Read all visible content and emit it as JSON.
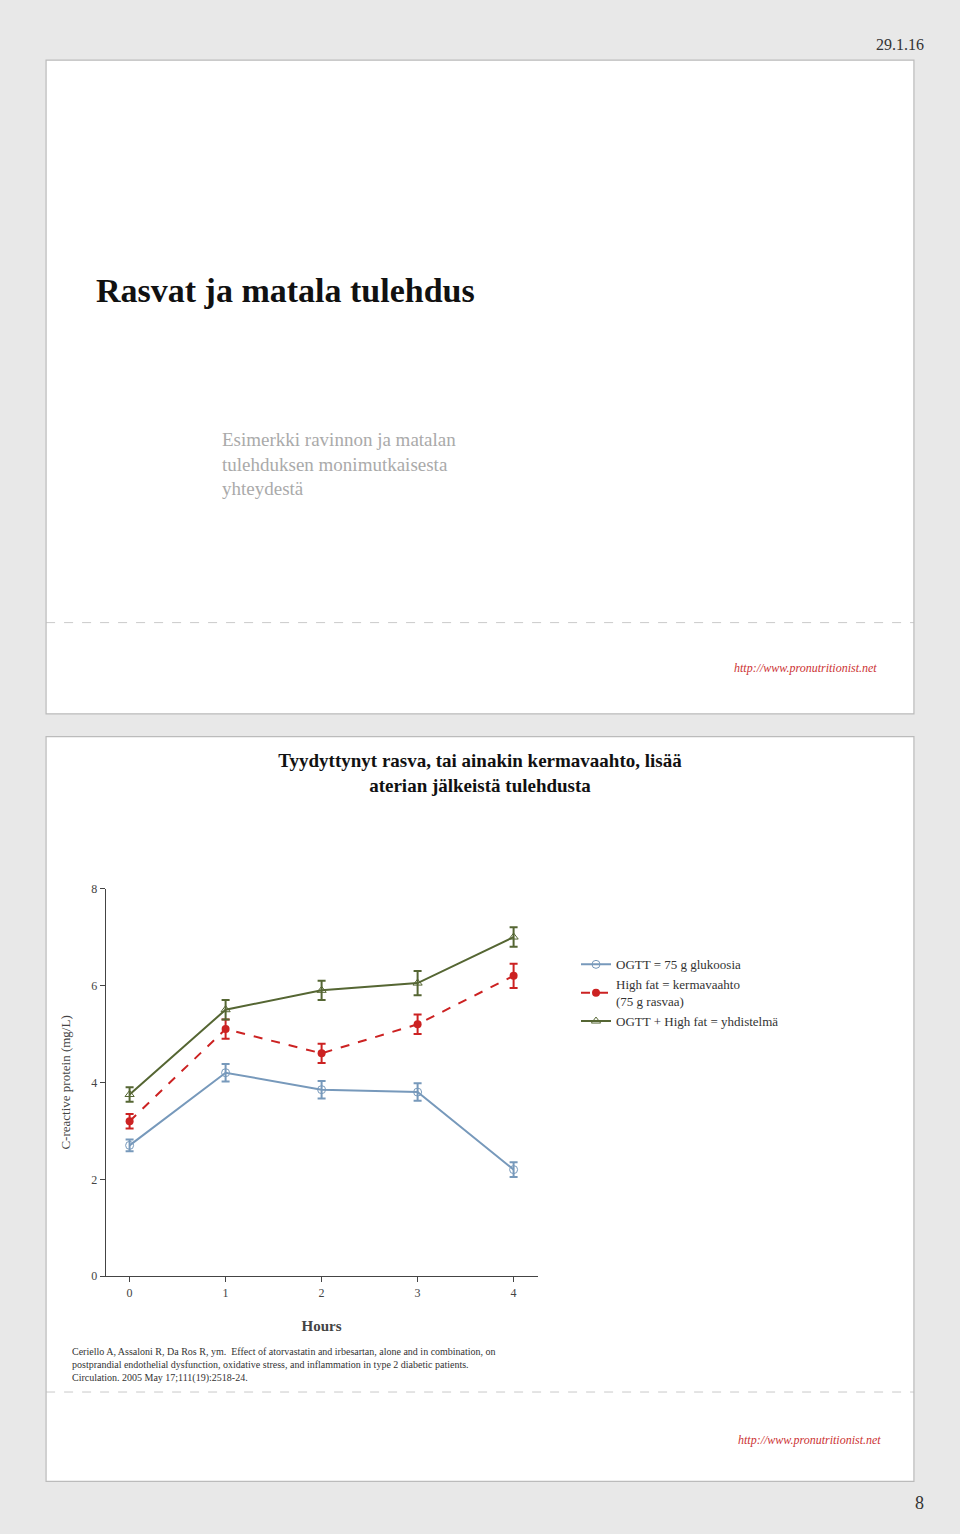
{
  "chart_data": {
    "type": "line",
    "title": "Tyydyttynyt rasva, tai ainakin kermavaahto, lisää\naterian jälkeistä tulehdusta",
    "annotations": [
      "29.1.16",
      "Rasvat ja matala tulehdus",
      "Esimerkki ravinnon ja matalan\ntulehduksen monimutkaisesta\nyhteydestä",
      "http://www.pronutritionist.net",
      "Ceriello A, Assaloni R, Da Ros R, ym.  Effect of atorvastatin and irbesartan, alone and in combination, on\npostprandial endothelial dysfunction, oxidative stress, and inflammation in type 2 diabetic patients.\nCirculation. 2005 May 17;111(19):2518-24.",
      "http://www.pronutritionist.net",
      "8"
    ],
    "x": [
      0,
      1,
      2,
      3,
      4
    ],
    "xlabel": "Hours",
    "ylabel": "C-reactive protein (mg/L)",
    "series": [
      {
        "name": "OGTT = 75 g glukoosia",
        "color": "#7799bb",
        "values": [
          2.7,
          4.2,
          3.85,
          3.8,
          2.2
        ],
        "errors": [
          0.12,
          0.18,
          0.18,
          0.18,
          0.15
        ],
        "marker": "circle-open",
        "line_style": "solid"
      },
      {
        "name": "High fat = kermavaahto\n(75 g rasvaa)",
        "color": "#cc2222",
        "values": [
          3.2,
          5.1,
          4.6,
          5.2,
          6.2
        ],
        "errors": [
          0.15,
          0.2,
          0.2,
          0.2,
          0.25
        ],
        "marker": "circle",
        "line_style": "dashed"
      },
      {
        "name": "OGTT + High fat = yhdistelmä",
        "color": "#556633",
        "values": [
          3.75,
          5.5,
          5.9,
          6.05,
          7.0
        ],
        "errors": [
          0.15,
          0.2,
          0.2,
          0.25,
          0.2
        ],
        "marker": "triangle-up-open",
        "line_style": "solid"
      }
    ],
    "xlim": [
      -0.25,
      4.25
    ],
    "xticks": [
      0,
      1,
      2,
      3,
      4
    ],
    "ylim": [
      0,
      8
    ],
    "yticks": [
      0,
      2,
      4,
      6,
      8
    ],
    "grid": false,
    "legend": "right"
  }
}
